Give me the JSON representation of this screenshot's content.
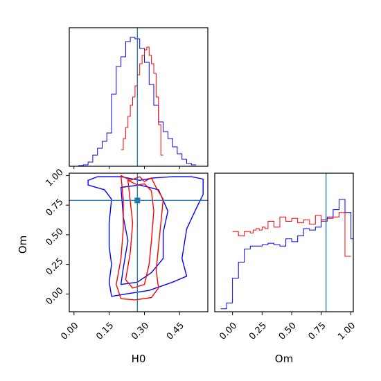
{
  "colors": {
    "sample_a": "#0000ff",
    "sample_b": "#ff0000",
    "truth": "#1f77b4",
    "axis": "#000000"
  },
  "chart_data": [
    {
      "type": "histogram",
      "panel": "H0 marginal",
      "xlim": [
        -0.02,
        0.57
      ],
      "truth": 0.27,
      "series": [
        {
          "color": "#0000ff",
          "bins_start": 0.0,
          "bin_width": 0.02,
          "values": [
            0.0,
            0.005,
            0.01,
            0.03,
            0.08,
            0.13,
            0.18,
            0.24,
            0.52,
            0.72,
            0.79,
            0.9,
            0.93,
            0.92,
            0.85,
            0.75,
            0.59,
            0.44,
            0.32,
            0.25,
            0.2,
            0.14,
            0.09,
            0.05,
            0.02,
            0.01
          ]
        },
        {
          "color": "#ff0000",
          "bins_start": 0.2,
          "bin_width": 0.01,
          "values": [
            0.12,
            0.2,
            0.28,
            0.36,
            0.44,
            0.5,
            0.58,
            0.66,
            0.74,
            0.8,
            0.84,
            0.86,
            0.8,
            0.74,
            0.67,
            0.5,
            0.3,
            0.08
          ]
        }
      ]
    },
    {
      "type": "contour",
      "panel": "H0 vs Om 2D",
      "xlabel": "H0",
      "ylabel": "Om",
      "xlim": [
        -0.02,
        0.57
      ],
      "ylim": [
        -0.15,
        1.02
      ],
      "xticks": [
        "0.00",
        "0.15",
        "0.30",
        "0.45"
      ],
      "yticks": [
        "0.00",
        "0.25",
        "0.50",
        "0.75",
        "1.00"
      ],
      "truth": {
        "x": 0.27,
        "y": 0.79
      },
      "series": [
        {
          "color": "#0000ff",
          "contours": [
            [
              [
                0.06,
                0.96
              ],
              [
                0.1,
                0.99
              ],
              [
                0.2,
                0.99
              ],
              [
                0.28,
                0.96
              ],
              [
                0.34,
                0.98
              ],
              [
                0.42,
                0.99
              ],
              [
                0.5,
                0.99
              ],
              [
                0.55,
                0.97
              ],
              [
                0.55,
                0.84
              ],
              [
                0.52,
                0.72
              ],
              [
                0.48,
                0.55
              ],
              [
                0.46,
                0.3
              ],
              [
                0.48,
                0.15
              ],
              [
                0.42,
                0.1
              ],
              [
                0.32,
                0.03
              ],
              [
                0.22,
                0.0
              ],
              [
                0.16,
                -0.02
              ],
              [
                0.15,
                0.1
              ],
              [
                0.16,
                0.25
              ],
              [
                0.15,
                0.4
              ],
              [
                0.15,
                0.6
              ],
              [
                0.16,
                0.8
              ],
              [
                0.13,
                0.88
              ],
              [
                0.06,
                0.92
              ],
              [
                0.06,
                0.96
              ]
            ],
            [
              [
                0.2,
                0.9
              ],
              [
                0.28,
                0.92
              ],
              [
                0.36,
                0.88
              ],
              [
                0.4,
                0.7
              ],
              [
                0.38,
                0.52
              ],
              [
                0.38,
                0.3
              ],
              [
                0.33,
                0.18
              ],
              [
                0.27,
                0.1
              ],
              [
                0.2,
                0.08
              ],
              [
                0.21,
                0.22
              ],
              [
                0.23,
                0.45
              ],
              [
                0.21,
                0.65
              ],
              [
                0.2,
                0.9
              ]
            ]
          ]
        },
        {
          "color": "#ff0000",
          "contours": [
            [
              [
                0.2,
                1.0
              ],
              [
                0.24,
                0.96
              ],
              [
                0.28,
                0.99
              ],
              [
                0.3,
                0.95
              ],
              [
                0.33,
                0.98
              ],
              [
                0.35,
                0.9
              ],
              [
                0.38,
                0.8
              ],
              [
                0.37,
                0.6
              ],
              [
                0.36,
                0.4
              ],
              [
                0.35,
                0.2
              ],
              [
                0.36,
                0.05
              ],
              [
                0.33,
                -0.03
              ],
              [
                0.26,
                -0.05
              ],
              [
                0.2,
                -0.04
              ],
              [
                0.18,
                0.08
              ],
              [
                0.2,
                0.3
              ],
              [
                0.21,
                0.55
              ],
              [
                0.21,
                0.8
              ],
              [
                0.2,
                1.0
              ]
            ],
            [
              [
                0.23,
                0.96
              ],
              [
                0.27,
                0.92
              ],
              [
                0.3,
                0.93
              ],
              [
                0.33,
                0.87
              ],
              [
                0.34,
                0.7
              ],
              [
                0.33,
                0.45
              ],
              [
                0.32,
                0.25
              ],
              [
                0.3,
                0.08
              ],
              [
                0.25,
                0.05
              ],
              [
                0.22,
                0.12
              ],
              [
                0.24,
                0.35
              ],
              [
                0.25,
                0.6
              ],
              [
                0.23,
                0.96
              ]
            ]
          ]
        }
      ]
    },
    {
      "type": "histogram",
      "panel": "Om marginal",
      "xlabel": "Om",
      "xlim": [
        -0.15,
        1.02
      ],
      "xticks": [
        "0.00",
        "0.25",
        "0.50",
        "0.75",
        "1.00"
      ],
      "truth": 0.79,
      "series": [
        {
          "color": "#0000ff",
          "bins_start": -0.1,
          "bin_width": 0.05,
          "values": [
            0.02,
            0.06,
            0.23,
            0.34,
            0.43,
            0.45,
            0.45,
            0.46,
            0.47,
            0.46,
            0.45,
            0.5,
            0.48,
            0.52,
            0.57,
            0.56,
            0.58,
            0.63,
            0.65,
            0.7,
            0.77,
            0.68,
            0.5,
            0.35
          ]
        },
        {
          "color": "#ff0000",
          "bins_start": 0.0,
          "bin_width": 0.025,
          "values": [
            0.55,
            0.55,
            0.52,
            0.52,
            0.55,
            0.55,
            0.54,
            0.56,
            0.57,
            0.56,
            0.58,
            0.57,
            0.62,
            0.62,
            0.58,
            0.58,
            0.65,
            0.65,
            0.62,
            0.62,
            0.64,
            0.64,
            0.61,
            0.61,
            0.63,
            0.63,
            0.6,
            0.6,
            0.66,
            0.66,
            0.62,
            0.62,
            0.64,
            0.64,
            0.65,
            0.65,
            0.68,
            0.68,
            0.38,
            0.38
          ]
        }
      ]
    }
  ]
}
